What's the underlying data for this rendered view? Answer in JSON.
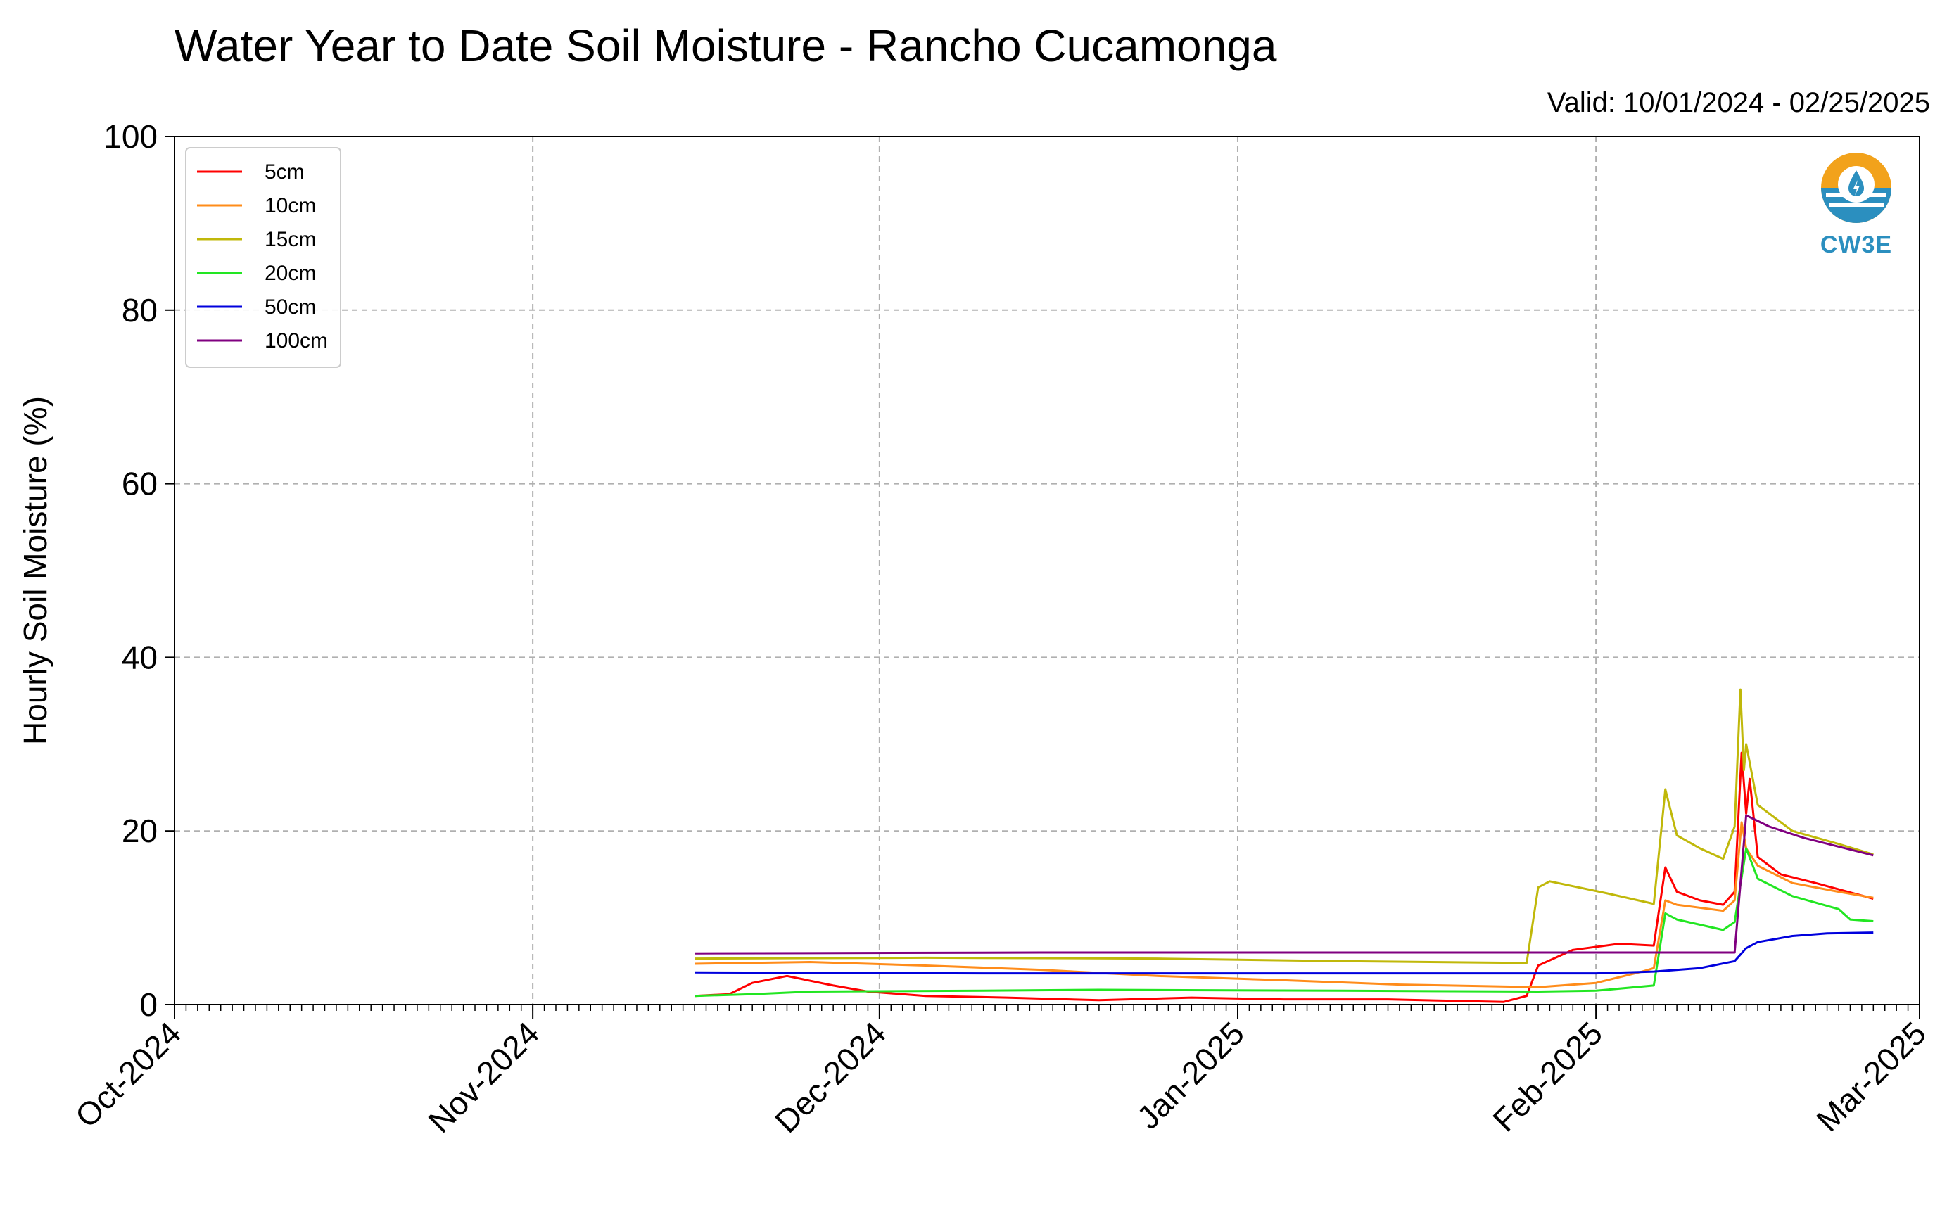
{
  "chart_data": {
    "type": "line",
    "title": "Water Year to Date Soil Moisture - Rancho Cucamonga",
    "subtitle": "Valid: 10/01/2024 - 02/25/2025",
    "ylabel": "Hourly Soil Moisture (%)",
    "xlabel": "",
    "ylim": [
      0,
      100
    ],
    "xlim": [
      "2024-10-01",
      "2025-03-01"
    ],
    "x_ticks": [
      "2024-10-01",
      "2024-11-01",
      "2024-12-01",
      "2025-01-01",
      "2025-02-01",
      "2025-03-01"
    ],
    "x_tick_labels": [
      "Oct-2024",
      "Nov-2024",
      "Dec-2024",
      "Jan-2025",
      "Feb-2025",
      "Mar-2025"
    ],
    "y_ticks": [
      0,
      20,
      40,
      60,
      80,
      100
    ],
    "y_tick_labels": [
      "0",
      "20",
      "40",
      "60",
      "80",
      "100"
    ],
    "grid": true,
    "legend_position": "top-left",
    "series": [
      {
        "name": "5cm",
        "color": "#ff0000",
        "points": [
          [
            "2024-11-15",
            1.0
          ],
          [
            "2024-11-18",
            1.2
          ],
          [
            "2024-11-20",
            2.5
          ],
          [
            "2024-11-23",
            3.3
          ],
          [
            "2024-11-27",
            2.2
          ],
          [
            "2024-11-30",
            1.5
          ],
          [
            "2024-12-05",
            1.0
          ],
          [
            "2024-12-12",
            0.8
          ],
          [
            "2024-12-20",
            0.5
          ],
          [
            "2024-12-28",
            0.8
          ],
          [
            "2025-01-05",
            0.6
          ],
          [
            "2025-01-14",
            0.6
          ],
          [
            "2025-01-24",
            0.3
          ],
          [
            "2025-01-26",
            1.0
          ],
          [
            "2025-01-27",
            4.5
          ],
          [
            "2025-01-30",
            6.3
          ],
          [
            "2025-02-03",
            7.0
          ],
          [
            "2025-02-06",
            6.8
          ],
          [
            "2025-02-07",
            15.8
          ],
          [
            "2025-02-08",
            13.0
          ],
          [
            "2025-02-10",
            12.0
          ],
          [
            "2025-02-12",
            11.5
          ],
          [
            "2025-02-13",
            13.0
          ],
          [
            "2025-02-13.6",
            29.0
          ],
          [
            "2025-02-14",
            22.0
          ],
          [
            "2025-02-14.3",
            26.0
          ],
          [
            "2025-02-15",
            17.0
          ],
          [
            "2025-02-17",
            15.0
          ],
          [
            "2025-02-20",
            14.0
          ],
          [
            "2025-02-25",
            12.2
          ]
        ]
      },
      {
        "name": "10cm",
        "color": "#ff8c1a",
        "points": [
          [
            "2024-11-15",
            4.7
          ],
          [
            "2024-11-25",
            4.9
          ],
          [
            "2024-12-05",
            4.5
          ],
          [
            "2024-12-15",
            4.0
          ],
          [
            "2024-12-25",
            3.3
          ],
          [
            "2025-01-05",
            2.8
          ],
          [
            "2025-01-15",
            2.3
          ],
          [
            "2025-01-27",
            2.0
          ],
          [
            "2025-02-01",
            2.5
          ],
          [
            "2025-02-05",
            3.8
          ],
          [
            "2025-02-06",
            4.2
          ],
          [
            "2025-02-07",
            12.0
          ],
          [
            "2025-02-08",
            11.5
          ],
          [
            "2025-02-12",
            10.8
          ],
          [
            "2025-02-13",
            12.0
          ],
          [
            "2025-02-13.6",
            21.0
          ],
          [
            "2025-02-14",
            18.0
          ],
          [
            "2025-02-15",
            16.0
          ],
          [
            "2025-02-18",
            14.0
          ],
          [
            "2025-02-22",
            13.0
          ],
          [
            "2025-02-25",
            12.3
          ]
        ]
      },
      {
        "name": "15cm",
        "color": "#c0b80a",
        "points": [
          [
            "2024-11-15",
            5.3
          ],
          [
            "2024-12-05",
            5.4
          ],
          [
            "2024-12-25",
            5.3
          ],
          [
            "2025-01-10",
            5.0
          ],
          [
            "2025-01-26",
            4.8
          ],
          [
            "2025-01-27",
            13.5
          ],
          [
            "2025-01-28",
            14.2
          ],
          [
            "2025-02-02",
            12.8
          ],
          [
            "2025-02-06",
            11.6
          ],
          [
            "2025-02-07",
            24.8
          ],
          [
            "2025-02-08",
            19.5
          ],
          [
            "2025-02-10",
            18.0
          ],
          [
            "2025-02-12",
            16.8
          ],
          [
            "2025-02-13",
            20.5
          ],
          [
            "2025-02-13.5",
            36.3
          ],
          [
            "2025-02-13.8",
            27.0
          ],
          [
            "2025-02-14",
            30.0
          ],
          [
            "2025-02-15",
            23.0
          ],
          [
            "2025-02-18",
            20.0
          ],
          [
            "2025-02-22",
            18.5
          ],
          [
            "2025-02-25",
            17.3
          ]
        ]
      },
      {
        "name": "20cm",
        "color": "#22e622",
        "points": [
          [
            "2024-11-15",
            1.0
          ],
          [
            "2024-11-20",
            1.2
          ],
          [
            "2024-11-25",
            1.5
          ],
          [
            "2024-12-10",
            1.6
          ],
          [
            "2024-12-20",
            1.7
          ],
          [
            "2025-01-10",
            1.6
          ],
          [
            "2025-01-27",
            1.5
          ],
          [
            "2025-02-01",
            1.6
          ],
          [
            "2025-02-06",
            2.2
          ],
          [
            "2025-02-07",
            10.5
          ],
          [
            "2025-02-08",
            9.8
          ],
          [
            "2025-02-12",
            8.6
          ],
          [
            "2025-02-13",
            9.5
          ],
          [
            "2025-02-14",
            18.0
          ],
          [
            "2025-02-15",
            14.5
          ],
          [
            "2025-02-18",
            12.5
          ],
          [
            "2025-02-22",
            11.0
          ],
          [
            "2025-02-23",
            9.8
          ],
          [
            "2025-02-25",
            9.6
          ]
        ]
      },
      {
        "name": "50cm",
        "color": "#0000dd",
        "points": [
          [
            "2024-11-15",
            3.7
          ],
          [
            "2024-12-10",
            3.6
          ],
          [
            "2025-01-10",
            3.6
          ],
          [
            "2025-02-01",
            3.6
          ],
          [
            "2025-02-06",
            3.8
          ],
          [
            "2025-02-10",
            4.2
          ],
          [
            "2025-02-13",
            5.0
          ],
          [
            "2025-02-14",
            6.5
          ],
          [
            "2025-02-15",
            7.2
          ],
          [
            "2025-02-18",
            7.9
          ],
          [
            "2025-02-21",
            8.2
          ],
          [
            "2025-02-25",
            8.3
          ]
        ]
      },
      {
        "name": "100cm",
        "color": "#800080",
        "points": [
          [
            "2024-11-15",
            5.9
          ],
          [
            "2024-12-15",
            6.0
          ],
          [
            "2025-01-15",
            6.0
          ],
          [
            "2025-02-13",
            6.0
          ],
          [
            "2025-02-14",
            21.8
          ],
          [
            "2025-02-16",
            20.5
          ],
          [
            "2025-02-19",
            19.2
          ],
          [
            "2025-02-22",
            18.2
          ],
          [
            "2025-02-25",
            17.2
          ]
        ]
      }
    ]
  },
  "logo": {
    "text": "CW3E"
  }
}
